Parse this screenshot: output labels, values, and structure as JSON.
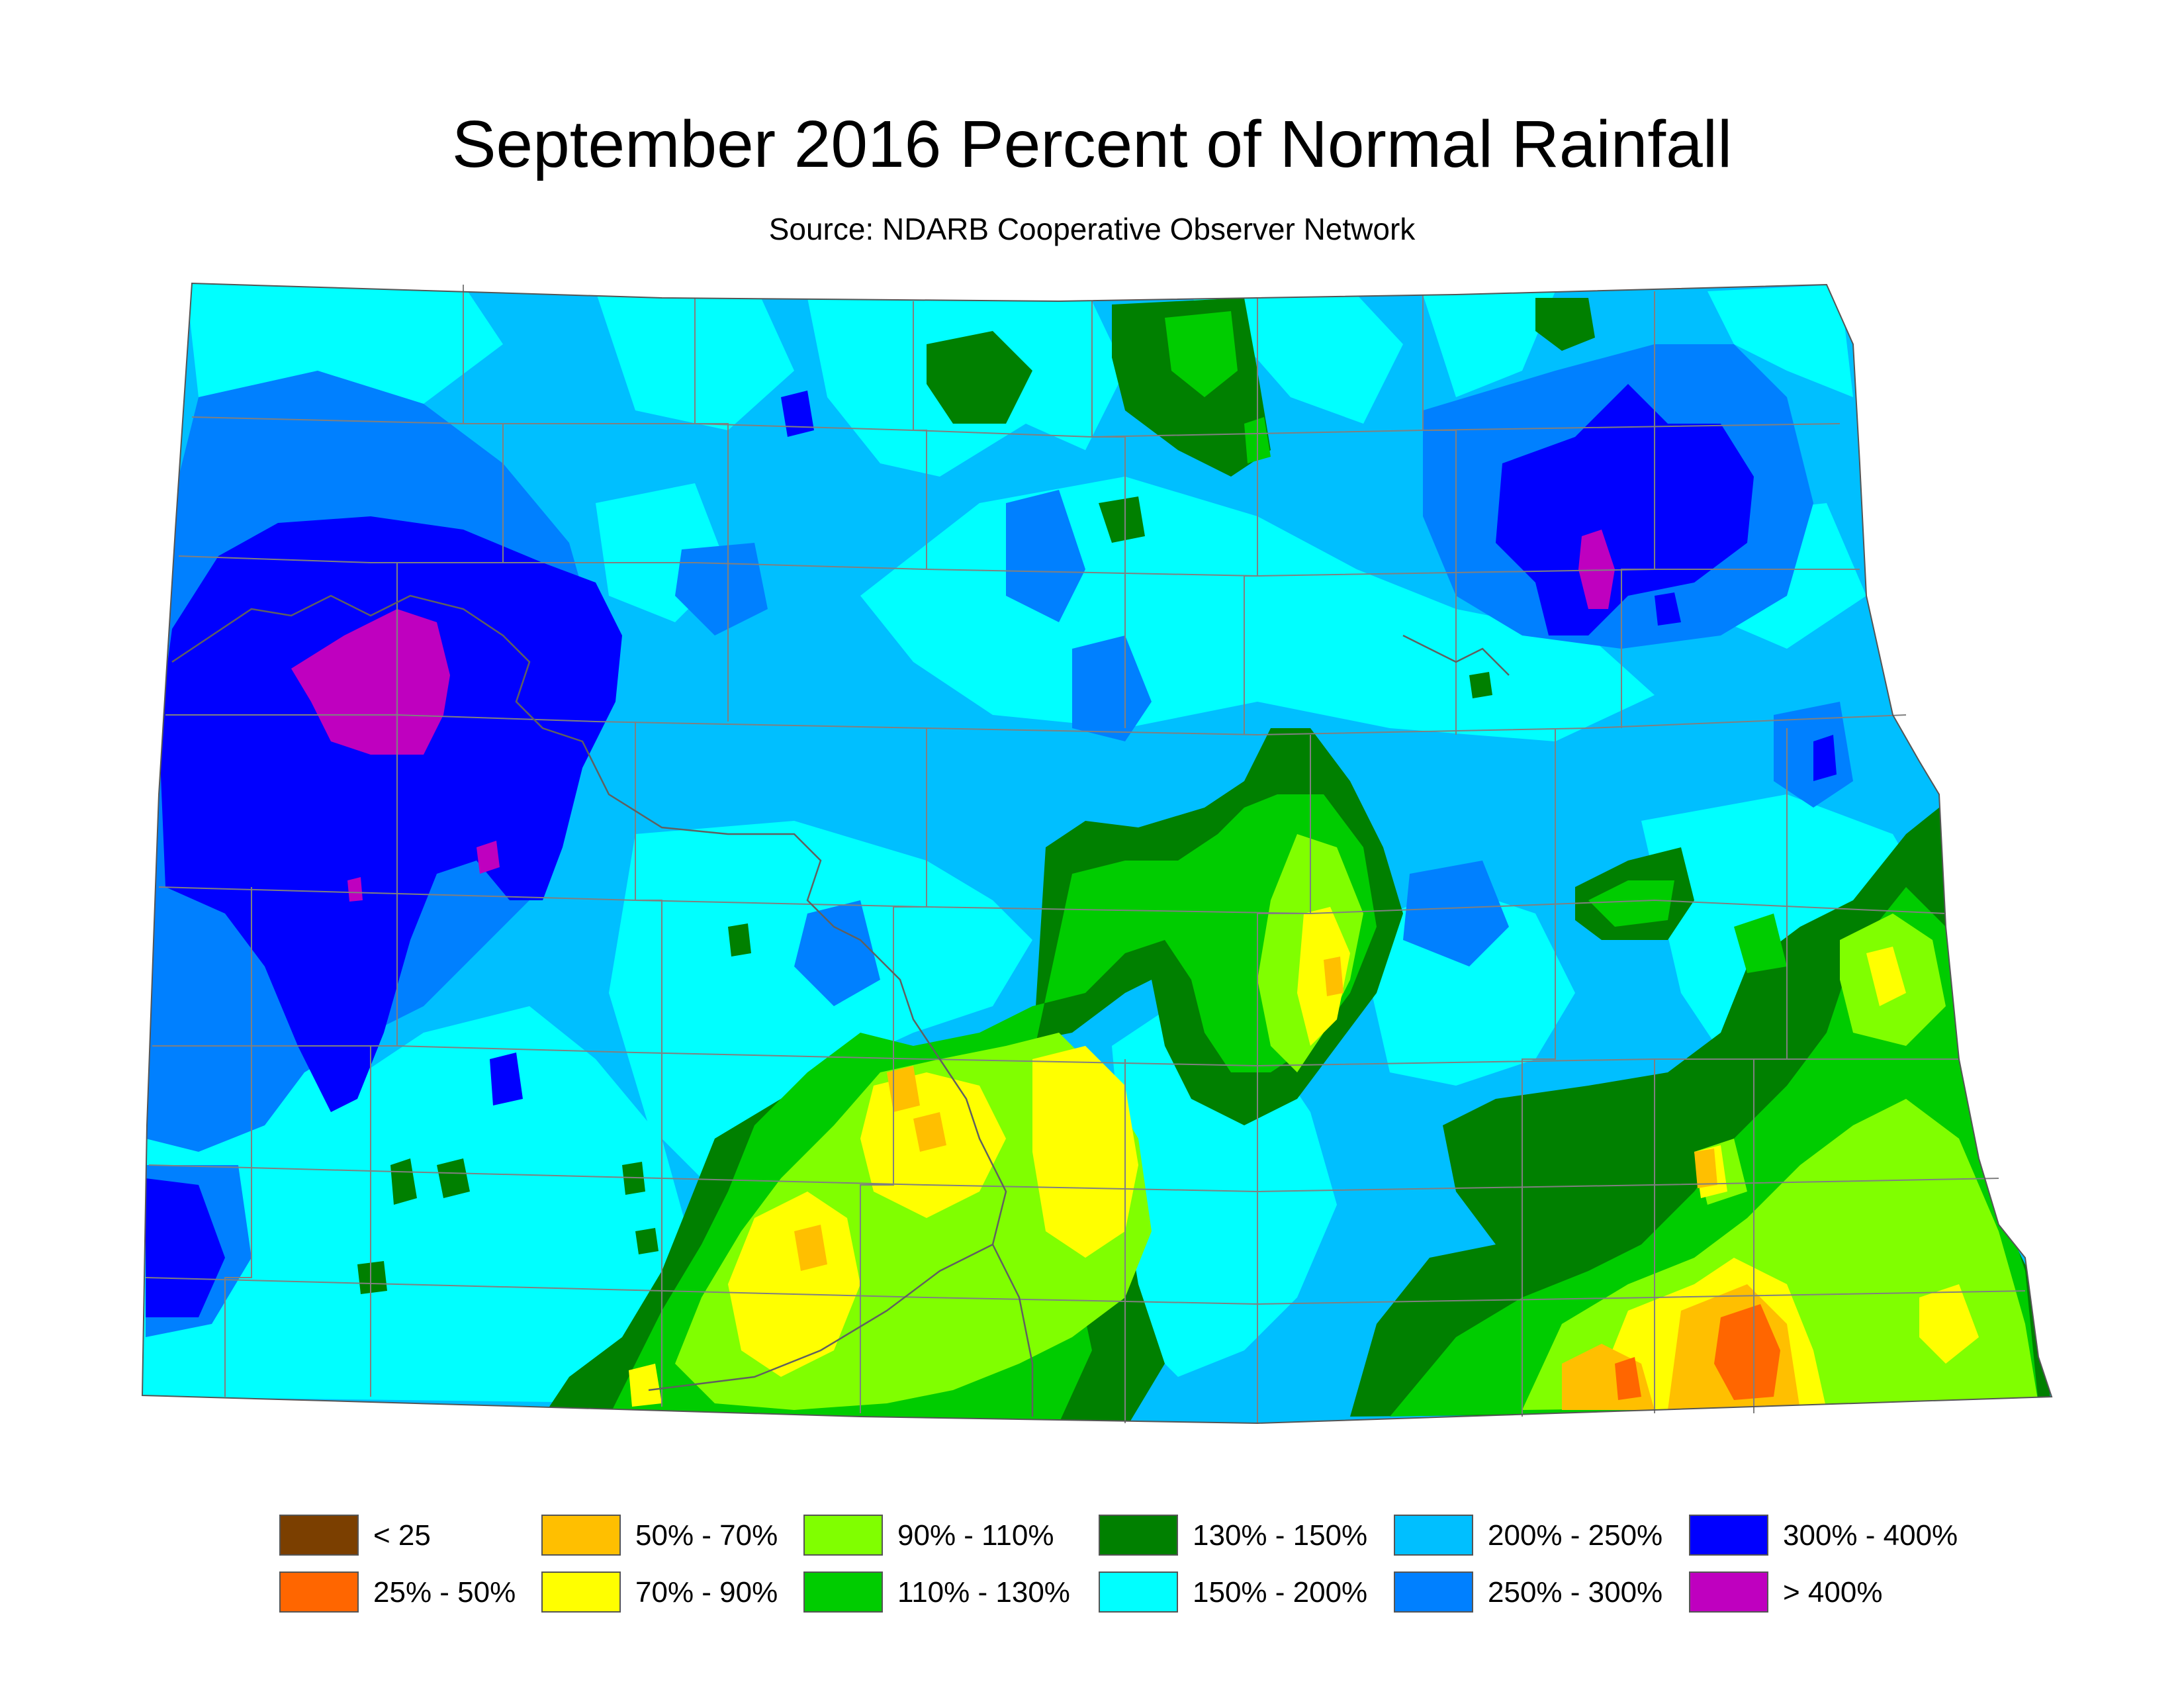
{
  "title": "September 2016 Percent of Normal Rainfall",
  "subtitle": "Source: NDARB Cooperative Observer Network",
  "legend": [
    {
      "label": "< 25",
      "color": "#7b3f00"
    },
    {
      "label": "25% - 50%",
      "color": "#ff6600"
    },
    {
      "label": "50% - 70%",
      "color": "#ffbf00"
    },
    {
      "label": "70% - 90%",
      "color": "#ffff00"
    },
    {
      "label": "90% - 110%",
      "color": "#80ff00"
    },
    {
      "label": "110% - 130%",
      "color": "#00cc00"
    },
    {
      "label": "130% - 150%",
      "color": "#008000"
    },
    {
      "label": "150% - 200%",
      "color": "#00ffff"
    },
    {
      "label": "200% - 250%",
      "color": "#00bfff"
    },
    {
      "label": "250% - 300%",
      "color": "#0080ff"
    },
    {
      "label": "300% - 400%",
      "color": "#0000ff"
    },
    {
      "label": "> 400%",
      "color": "#bf00bf"
    }
  ]
}
